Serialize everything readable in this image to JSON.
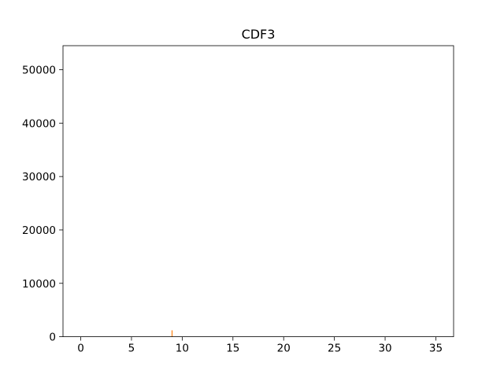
{
  "chart_data": {
    "type": "bar",
    "title": "CDF3",
    "xlabel": "",
    "ylabel": "",
    "xlim": [
      -1.75,
      36.75
    ],
    "ylim": [
      0,
      54500
    ],
    "x_ticks": [
      0,
      5,
      10,
      15,
      20,
      25,
      30,
      35
    ],
    "y_ticks": [
      0,
      10000,
      20000,
      30000,
      40000,
      50000
    ],
    "grid": false,
    "legend": "none",
    "series": [
      {
        "color": "#ff7f0e",
        "x": [
          9
        ],
        "values": [
          1200
        ]
      }
    ]
  }
}
